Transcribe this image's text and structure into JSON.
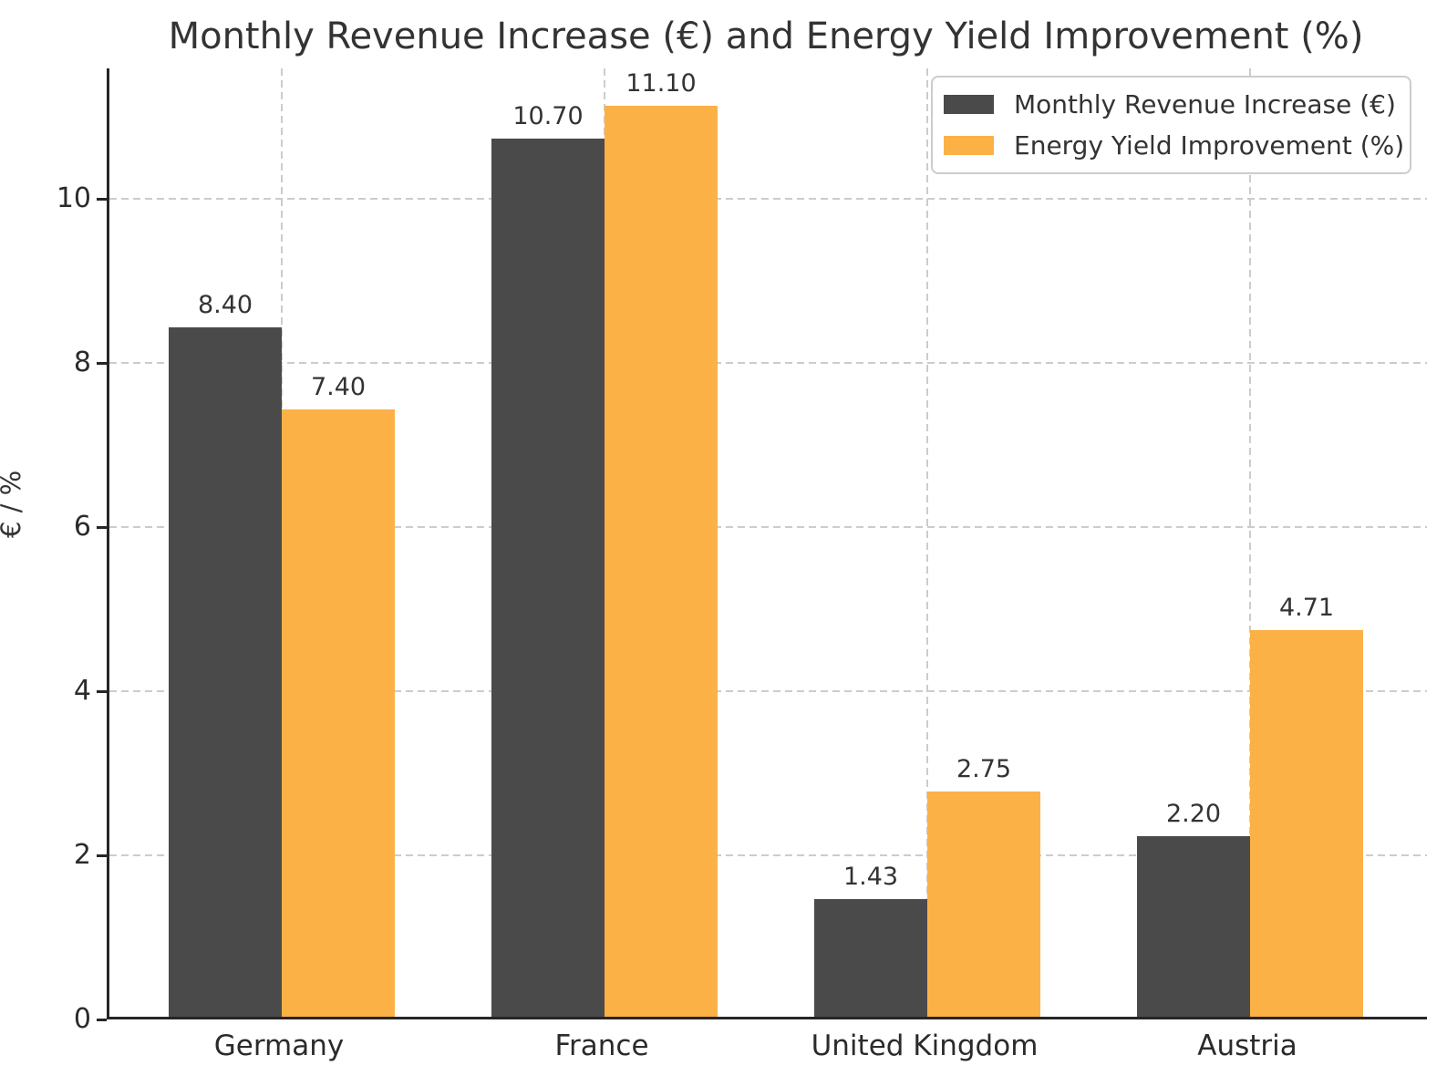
{
  "chart_data": {
    "type": "bar",
    "title": "Monthly Revenue Increase (€) and Energy Yield Improvement (%)",
    "ylabel": "€ / %",
    "xlabel": "",
    "categories": [
      "Germany",
      "France",
      "United Kingdom",
      "Austria"
    ],
    "series": [
      {
        "name": "Monthly Revenue Increase (€)",
        "color": "#4a4a4a",
        "values": [
          8.4,
          10.7,
          1.43,
          2.2
        ],
        "labels": [
          "8.40",
          "10.70",
          "1.43",
          "2.20"
        ]
      },
      {
        "name": "Energy Yield Improvement (%)",
        "color": "#fcb147",
        "values": [
          7.4,
          11.1,
          2.75,
          4.71
        ],
        "labels": [
          "7.40",
          "11.10",
          "2.75",
          "4.71"
        ]
      }
    ],
    "yticks": [
      "0",
      "2",
      "4",
      "6",
      "8",
      "10"
    ],
    "ytick_values": [
      0,
      2,
      4,
      6,
      8,
      10
    ],
    "ylim": [
      0,
      11.59
    ],
    "grid": "dashed",
    "grid_color": "#cccccc",
    "legend_position": "upper right"
  }
}
